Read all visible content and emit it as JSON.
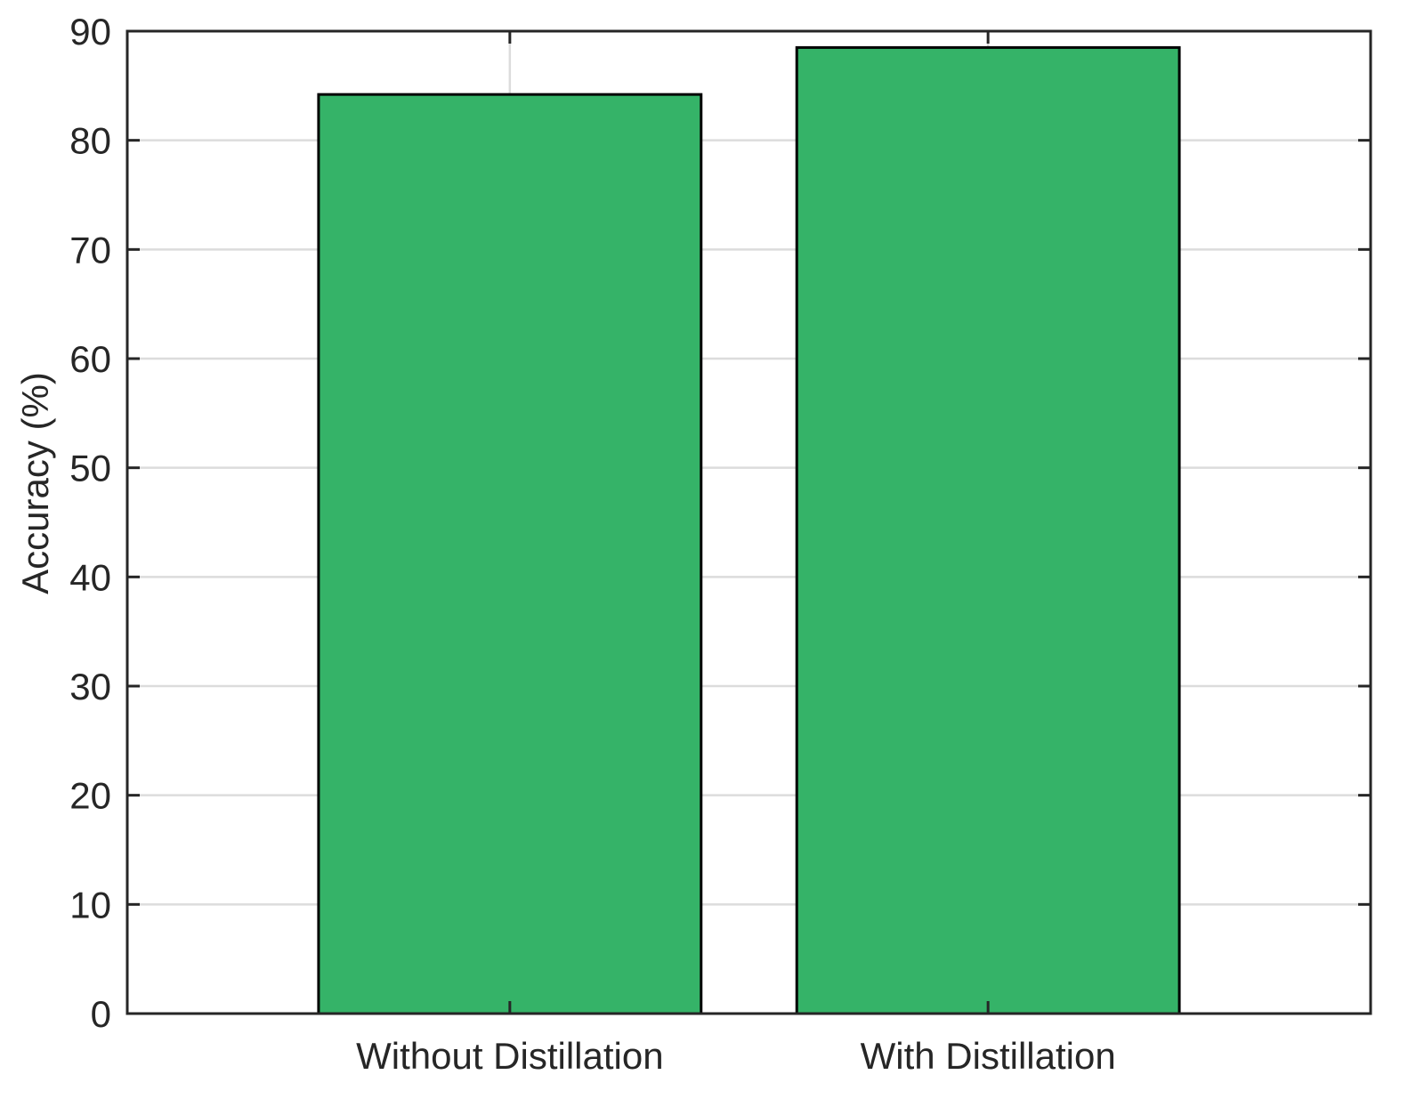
{
  "chart_data": {
    "type": "bar",
    "categories": [
      "Without Distillation",
      "With Distillation"
    ],
    "values": [
      84.2,
      88.5
    ],
    "title": "",
    "xlabel": "",
    "ylabel": "Accuracy (%)",
    "ylim": [
      0,
      90
    ],
    "yticks": [
      "0",
      "10",
      "20",
      "30",
      "40",
      "50",
      "60",
      "70",
      "80",
      "90"
    ],
    "grid": true,
    "legend": "none",
    "colors": {
      "bar_fill": "#35b368",
      "bar_edge": "#000000",
      "axis": "#262626",
      "grid": "#dcdcdc",
      "background": "#ffffff"
    }
  }
}
